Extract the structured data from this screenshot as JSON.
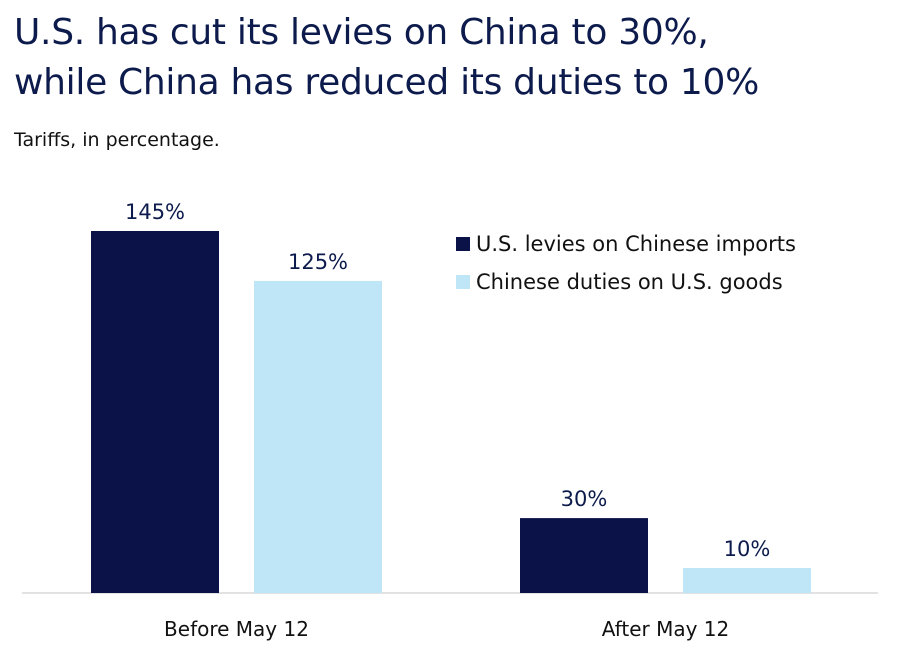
{
  "title_line1": "U.S. has cut its levies on China to 30%,",
  "title_line2": "while China has reduced its duties to 10%",
  "subtitle": "Tariffs, in percentage.",
  "chart_data": {
    "type": "bar",
    "categories": [
      "Before May 12",
      "After May 12"
    ],
    "series": [
      {
        "name": "U.S. levies on Chinese imports",
        "values": [
          145,
          30
        ],
        "labels": [
          "145%",
          "30%"
        ],
        "color": "#0a1247"
      },
      {
        "name": "Chinese duties on U.S. goods",
        "values": [
          125,
          10
        ],
        "labels": [
          "125%",
          "10%"
        ],
        "color": "#bfe6f7"
      }
    ],
    "ylim": [
      0,
      145
    ],
    "grid": false,
    "legend_position": "top-right"
  }
}
